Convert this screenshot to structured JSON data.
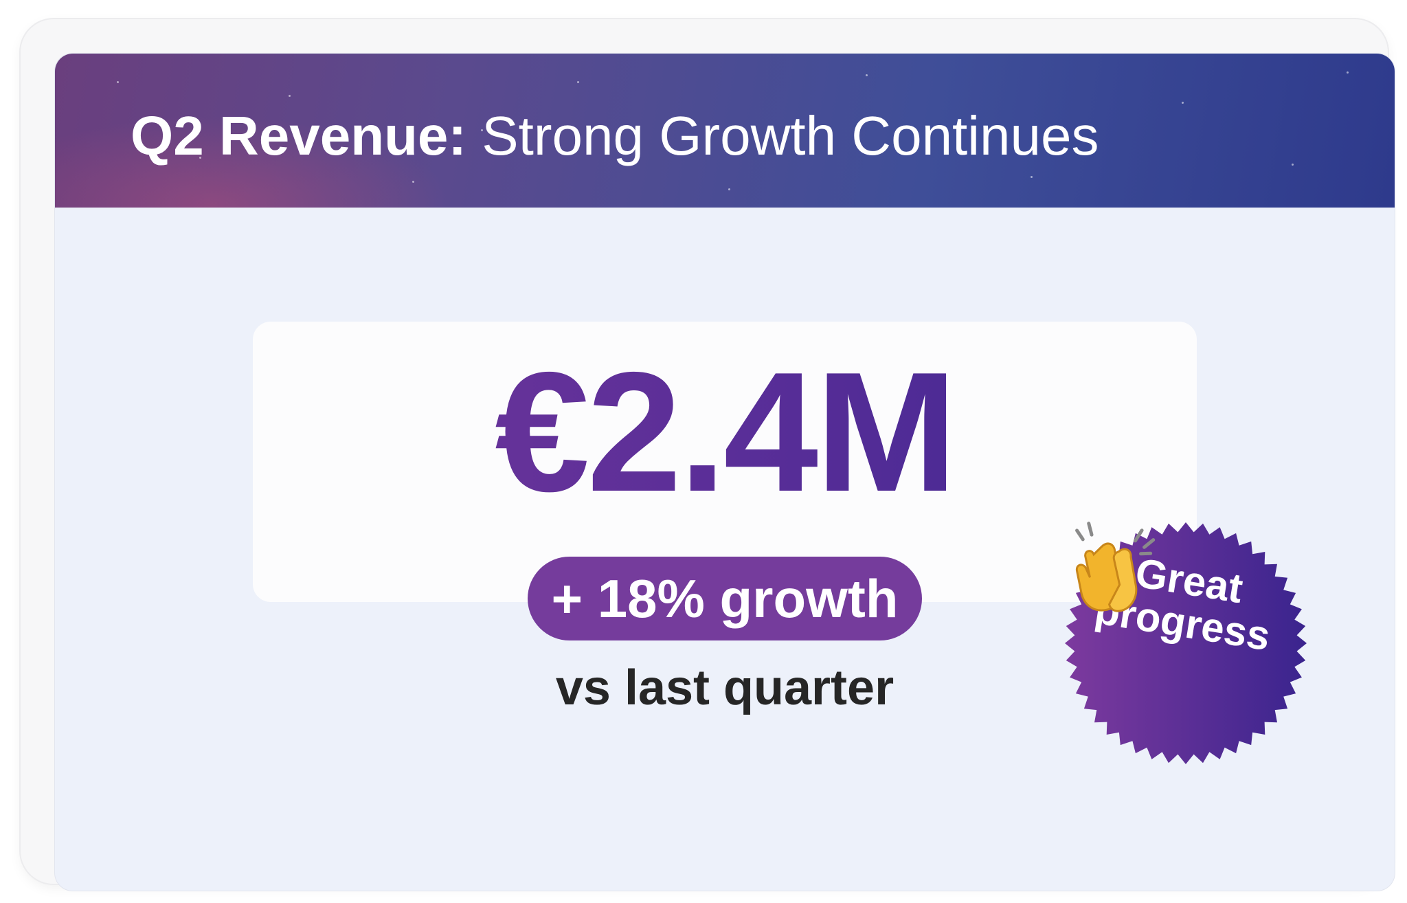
{
  "header": {
    "title_bold": "Q2 Revenue:",
    "title_rest": " Strong Growth Continues"
  },
  "metric": {
    "value": "€2.4M",
    "growth": "+ 18% growth",
    "comparison": "vs last quarter"
  },
  "badge": {
    "line1": "Great",
    "line2": "progress",
    "icon": "clapping-hands-icon"
  },
  "colors": {
    "header_start": "#6a3f7e",
    "header_end": "#2e3a8c",
    "accent_purple": "#753c9c",
    "accent_indigo": "#35248f",
    "slide_background": "#edf1fa",
    "text_dark": "#262626"
  }
}
